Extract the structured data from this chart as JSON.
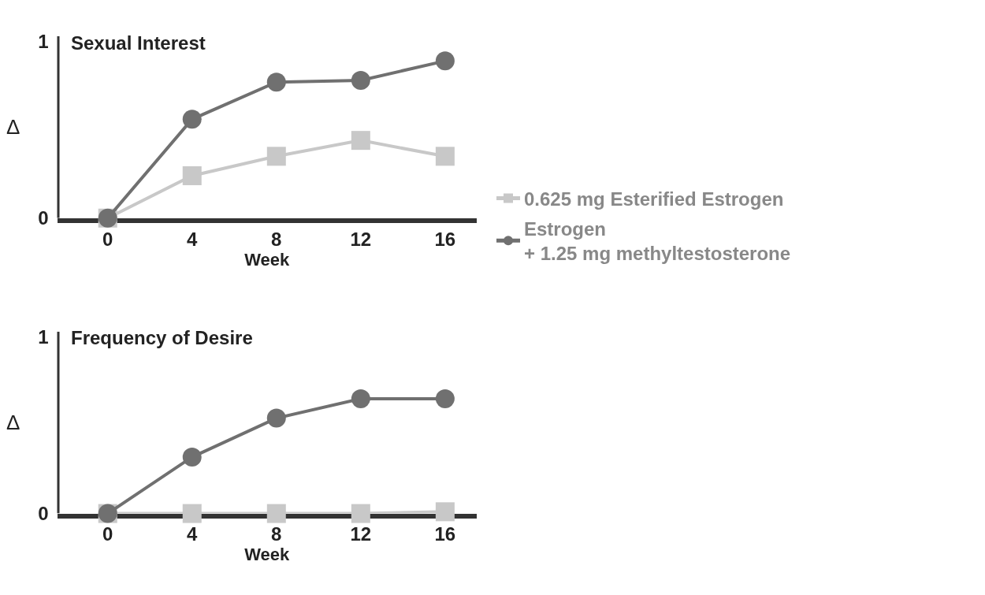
{
  "chart_data": [
    {
      "type": "line",
      "title": "Sexual Interest",
      "xlabel": "Week",
      "ylabel": "Δ",
      "x": [
        0,
        4,
        8,
        12,
        16
      ],
      "xlim": [
        -2.4,
        17.5
      ],
      "xticks": [
        0,
        4,
        8,
        12,
        16
      ],
      "ylim": [
        0,
        1.03
      ],
      "yticks": [
        0,
        1
      ],
      "grid": false,
      "legend": "right",
      "line_style": "solid",
      "series": [
        {
          "name": "0.625 mg Esterified Estrogen",
          "color": "#c8c8c8",
          "marker": "square",
          "values": [
            0,
            0.24,
            0.35,
            0.44,
            0.35
          ]
        },
        {
          "name": "Estrogen\n+ 1.25 mg methyltestosterone",
          "color": "#707070",
          "marker": "circle",
          "values": [
            0,
            0.56,
            0.77,
            0.78,
            0.89
          ]
        }
      ]
    },
    {
      "type": "line",
      "title": "Frequency of Desire",
      "xlabel": "Week",
      "ylabel": "Δ",
      "x": [
        0,
        4,
        8,
        12,
        16
      ],
      "xlim": [
        -2.4,
        17.5
      ],
      "xticks": [
        0,
        4,
        8,
        12,
        16
      ],
      "ylim": [
        0,
        1.03
      ],
      "yticks": [
        0,
        1
      ],
      "grid": false,
      "legend": "right",
      "line_style": "solid",
      "series": [
        {
          "name": "0.625 mg Esterified Estrogen",
          "color": "#c8c8c8",
          "marker": "square",
          "values": [
            0,
            0,
            0,
            0,
            0.01
          ]
        },
        {
          "name": "Estrogen\n+ 1.25 mg methyltestosterone",
          "color": "#707070",
          "marker": "circle",
          "values": [
            0,
            0.32,
            0.54,
            0.65,
            0.65
          ]
        }
      ]
    }
  ]
}
